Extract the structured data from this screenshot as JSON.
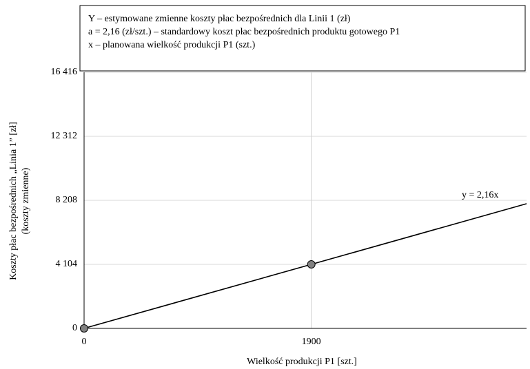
{
  "chart_data": {
    "type": "line",
    "box_lines": [
      "Y – estymowane zmienne koszty płac bezpośrednich dla Linii 1 (zł)",
      "a = 2,16 (zł/szt.) – standardowy koszt płac bezpośrednich produktu gotowego P1",
      "x – planowana wielkość produkcji P1 (szt.)"
    ],
    "xlabel": "Wielkość produkcji P1 [szt.]",
    "ylabel": [
      "Koszty płac bezpośrednich „Linia 1” [zł]",
      "(koszty zmienne)"
    ],
    "annotation": "y = 2,16x",
    "series": [
      {
        "color": "#000000",
        "x": [
          0,
          3700
        ],
        "values": [
          0,
          7992
        ]
      }
    ],
    "points": {
      "color": "#808080",
      "x": [
        0,
        1900
      ],
      "values": [
        0,
        4104
      ]
    },
    "xlim": [
      0,
      3700
    ],
    "ylim": [
      0,
      16416
    ],
    "xticks": [
      0,
      1900
    ],
    "yticks": [
      0,
      {
        "value": 4104,
        "label": "4 104"
      },
      {
        "value": 8208,
        "label": "8 208"
      },
      {
        "value": 12312,
        "label": "12 312"
      },
      {
        "value": 16416,
        "label": "16 416"
      }
    ],
    "grid": true
  }
}
